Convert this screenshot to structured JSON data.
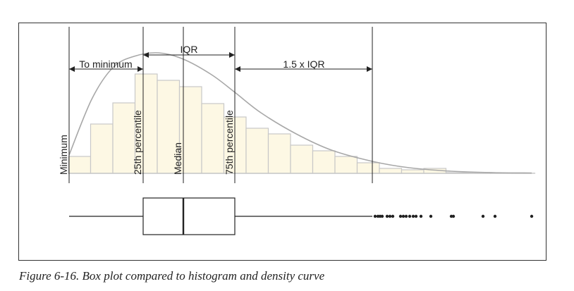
{
  "figure": {
    "caption": "Figure 6-16. Box plot compared to histogram and density curve",
    "labels": {
      "minimum": "Minimum",
      "p25": "25th percentile",
      "median": "Median",
      "p75": "75th percentile",
      "to_minimum": "To minimum",
      "iqr": "IQR",
      "iqr_15": "1.5 x IQR"
    },
    "colors": {
      "bar_fill": "#fdf8e4",
      "bar_stroke": "#c8c8c8",
      "curve": "#a8a8a8",
      "lines": "#222222"
    }
  },
  "chart_data": {
    "type": "bar",
    "histogram_relative_heights": [
      0.24,
      0.7,
      1.0,
      1.41,
      1.32,
      1.23,
      0.99,
      0.8,
      0.64,
      0.56,
      0.4,
      0.32,
      0.24,
      0.15,
      0.07,
      0.05,
      0.07,
      0.01,
      0.01,
      0.003,
      0.003
    ],
    "box_plot": {
      "whisker_low": 98,
      "q1": 203,
      "median": 260,
      "q3": 333,
      "upper_fence": 528,
      "outliers": [
        532,
        536,
        539,
        542,
        549,
        553,
        557,
        568,
        572,
        576,
        581,
        586,
        590,
        597,
        611,
        640,
        643,
        685,
        702,
        754
      ]
    },
    "density_curve": [
      [
        98,
        0.26
      ],
      [
        130,
        1.05
      ],
      [
        160,
        1.5
      ],
      [
        190,
        1.66
      ],
      [
        225,
        1.71
      ],
      [
        260,
        1.62
      ],
      [
        300,
        1.4
      ],
      [
        333,
        1.15
      ],
      [
        370,
        0.86
      ],
      [
        420,
        0.56
      ],
      [
        470,
        0.33
      ],
      [
        528,
        0.17
      ],
      [
        580,
        0.08
      ],
      [
        640,
        0.03
      ],
      [
        700,
        0.01
      ],
      [
        754,
        0.005
      ]
    ]
  }
}
